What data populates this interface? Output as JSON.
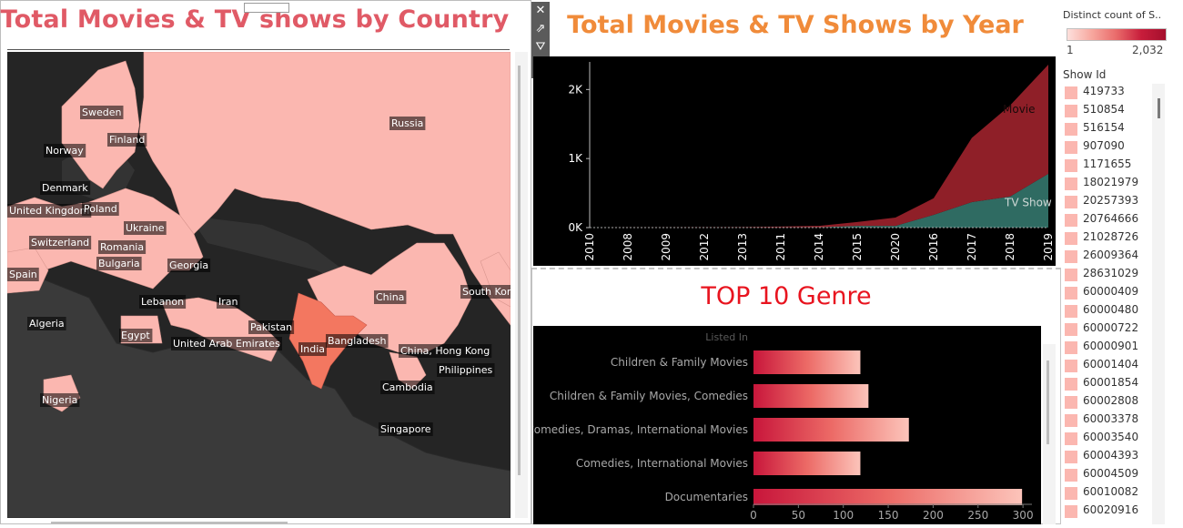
{
  "map": {
    "title": "Total Movies & TV shows by Country",
    "country_labels": [
      "Sweden",
      "Russia",
      "Finland",
      "Norway",
      "Denmark",
      "United Kingdom",
      "Poland",
      "Ukraine",
      "Switzerland",
      "Romania",
      "Spain",
      "Bulgaria",
      "Georgia",
      "Lebanon",
      "Iran",
      "Algeria",
      "China",
      "South Korea",
      "Pakistan",
      "Egypt",
      "United Arab Emirates",
      "India",
      "Bangladesh",
      "China, Hong Kong",
      "Philippines",
      "Nigeria",
      "Cambodia",
      "Singapore"
    ]
  },
  "legend": {
    "title": "Distinct count of S..",
    "min_label": "1",
    "max_label": "2,032",
    "colors": {
      "low": "#fde0dc",
      "high": "#a50f2d"
    }
  },
  "show_id": {
    "title": "Show Id",
    "items": [
      "419733",
      "510854",
      "516154",
      "907090",
      "1171655",
      "18021979",
      "20257393",
      "20764666",
      "21028726",
      "26009364",
      "28631029",
      "60000409",
      "60000480",
      "60000722",
      "60000901",
      "60001404",
      "60001854",
      "60002808",
      "60003378",
      "60003540",
      "60004393",
      "60004509",
      "60010082",
      "60020916"
    ]
  },
  "toolbar": {
    "icons": [
      "close-icon",
      "popout-icon",
      "filter-icon",
      "menu-arrow-icon"
    ]
  },
  "chart_data": [
    {
      "type": "area",
      "title": "Total Movies & TV Shows by Year",
      "categories": [
        "2010",
        "2008",
        "2009",
        "2012",
        "2013",
        "2011",
        "2014",
        "2015",
        "2020",
        "2016",
        "2017",
        "2018",
        "2019"
      ],
      "series": [
        {
          "name": "TV Show",
          "values": [
            1,
            1,
            1,
            2,
            3,
            3,
            5,
            25,
            25,
            185,
            370,
            450,
            780
          ],
          "color": "#2f6b62"
        },
        {
          "name": "Movie",
          "values": [
            1,
            2,
            2,
            3,
            6,
            12,
            20,
            55,
            120,
            240,
            930,
            1320,
            1580
          ],
          "color": "#8f1f28"
        }
      ],
      "stacked": true,
      "yticks": [
        {
          "value": 0,
          "label": "0K"
        },
        {
          "value": 1000,
          "label": "1K"
        },
        {
          "value": 2000,
          "label": "2K"
        }
      ],
      "ylim": [
        0,
        2400
      ],
      "grid": false,
      "colors": {
        "background": "#000000",
        "axis_text": "#ffffff"
      }
    },
    {
      "type": "bar",
      "title": "TOP 10 Genre",
      "header_label": "Listed In",
      "orientation": "horizontal",
      "categories": [
        "Children & Family Movies",
        "Children & Family Movies, Comedies",
        "Comedies, Dramas, International Movies",
        "Comedies, International Movies",
        "Documentaries"
      ],
      "values": [
        119,
        128,
        173,
        119,
        299
      ],
      "xticks": [
        0,
        50,
        100,
        150,
        200,
        250,
        300
      ],
      "xlim": [
        0,
        310
      ],
      "colors": {
        "background": "#000000",
        "bar_start": "#c8163b",
        "bar_end": "#fcc4ba",
        "label_text": "#a8a8a8"
      }
    }
  ]
}
